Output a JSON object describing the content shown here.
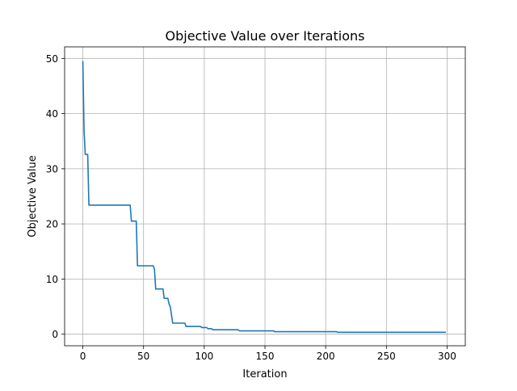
{
  "chart_data": {
    "type": "line",
    "title": "Objective Value over Iterations",
    "xlabel": "Iteration",
    "ylabel": "Objective Value",
    "xlim": [
      -15,
      315
    ],
    "ylim": [
      -2.1,
      52.1
    ],
    "xticks": [
      0,
      50,
      100,
      150,
      200,
      250,
      300
    ],
    "yticks": [
      0,
      10,
      20,
      30,
      40,
      50
    ],
    "grid": true,
    "series": [
      {
        "color": "#1f77b4",
        "x": [
          0,
          1,
          2,
          4,
          5,
          39,
          40,
          44,
          45,
          58,
          59,
          60,
          66,
          67,
          70,
          71,
          72,
          73,
          74,
          84,
          85,
          97,
          98,
          102,
          103,
          106,
          107,
          128,
          129,
          157,
          158,
          209,
          210,
          299
        ],
        "y": [
          49.5,
          37.0,
          32.6,
          32.6,
          23.4,
          23.4,
          20.5,
          20.5,
          12.4,
          12.4,
          11.8,
          8.2,
          8.2,
          6.5,
          6.5,
          5.5,
          5.0,
          3.5,
          2.0,
          2.0,
          1.4,
          1.4,
          1.2,
          1.2,
          1.0,
          1.0,
          0.8,
          0.8,
          0.6,
          0.6,
          0.45,
          0.45,
          0.35,
          0.35
        ]
      }
    ]
  }
}
